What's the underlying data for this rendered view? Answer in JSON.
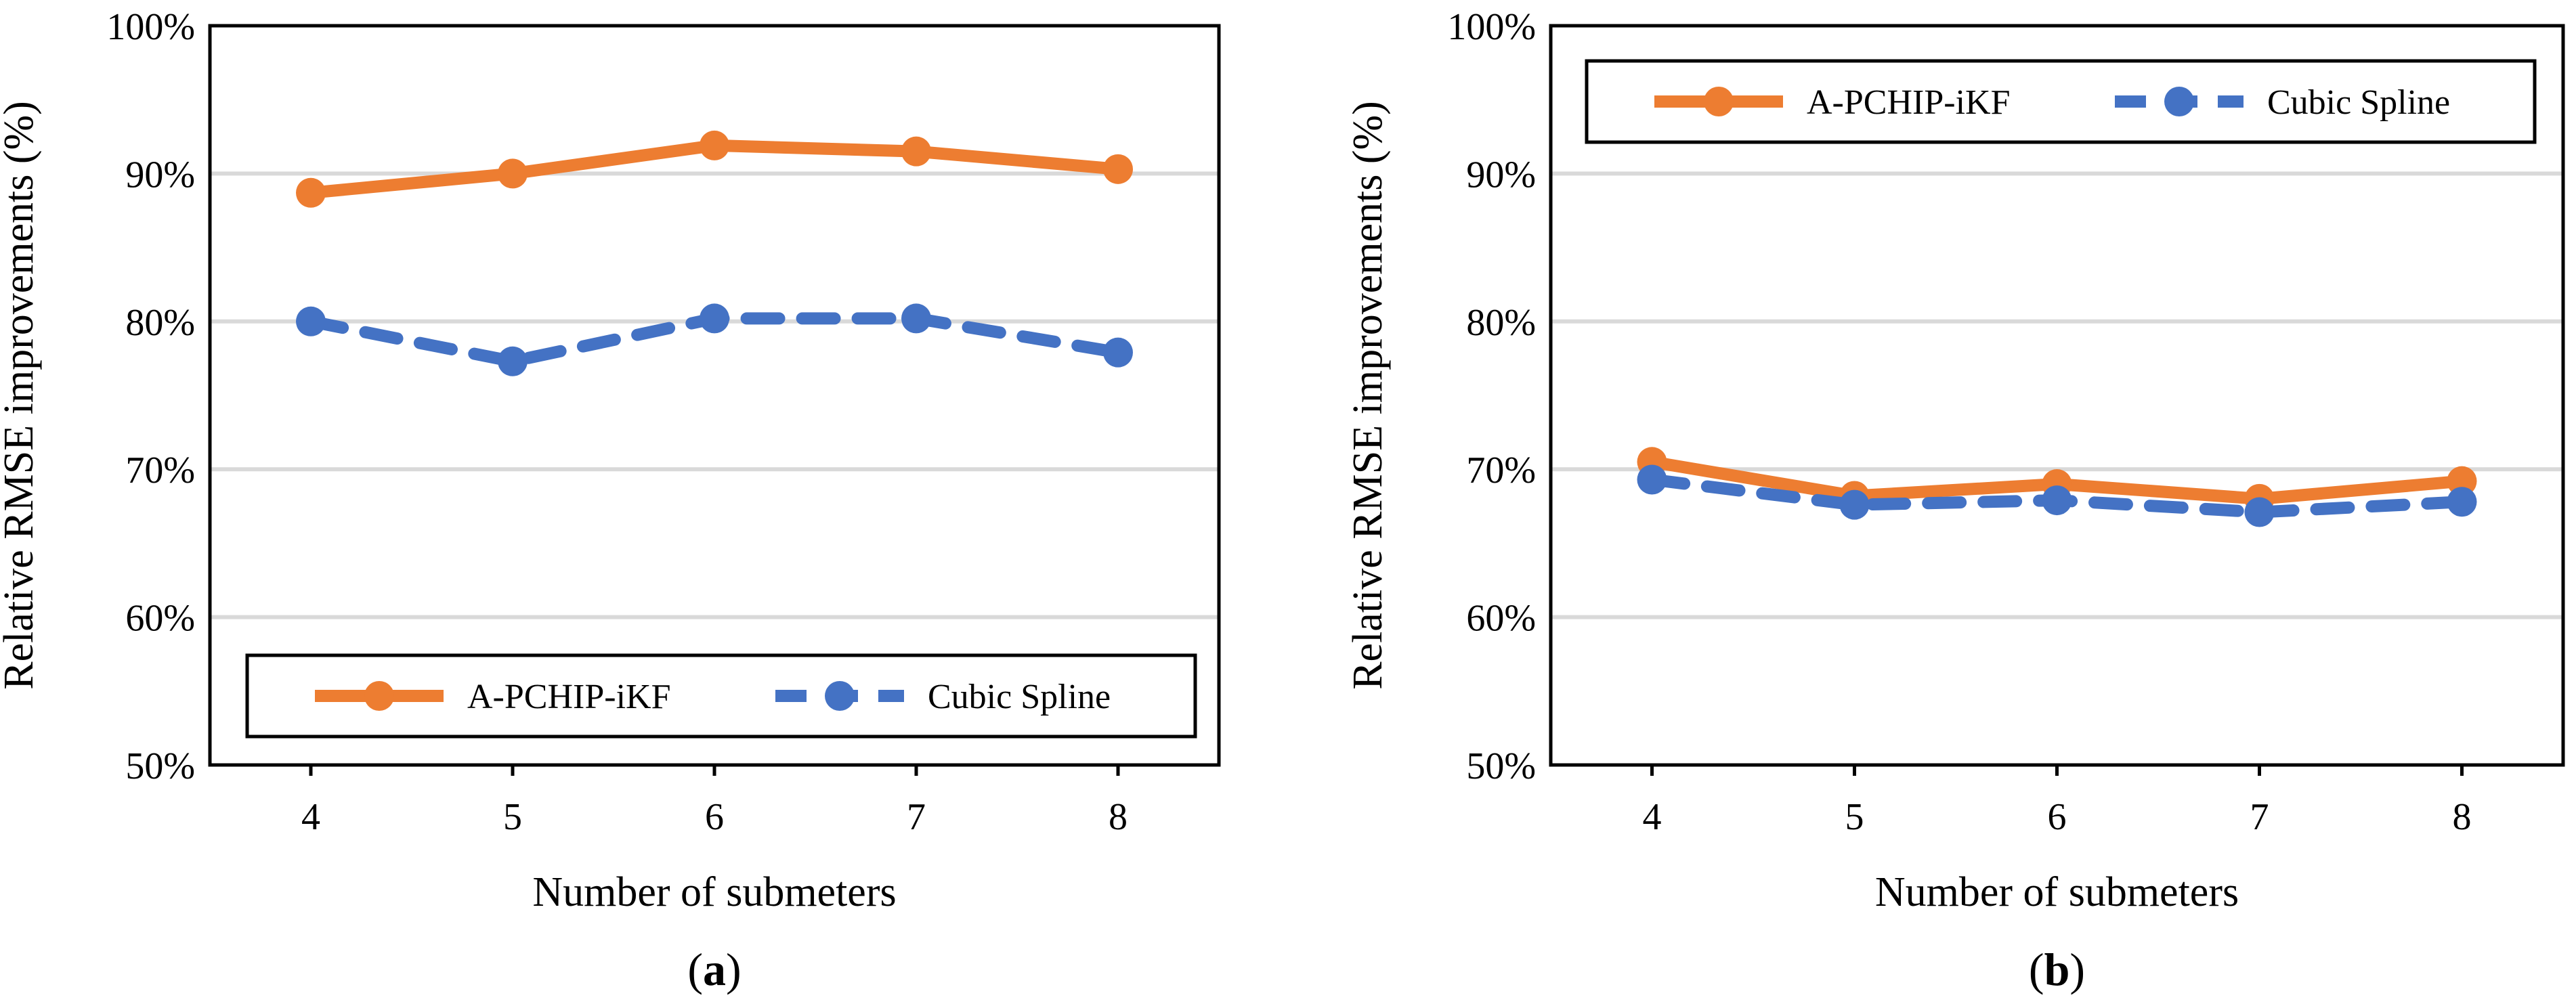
{
  "colors": {
    "apchip": "#ED7D31",
    "spline": "#4472C4"
  },
  "chart_data": [
    {
      "id": "a",
      "type": "line",
      "caption": "a",
      "categories": [
        "4",
        "5",
        "6",
        "7",
        "8"
      ],
      "ylim": [
        50,
        100
      ],
      "yticks": [
        "50%",
        "60%",
        "70%",
        "80%",
        "90%",
        "100%"
      ],
      "xlabel": "Number of submeters",
      "ylabel": "Relative RMSE improvements (%)",
      "legend_position": "bottom",
      "series": [
        {
          "name": "A-PCHIP-iKF",
          "values": [
            88.7,
            90.0,
            91.9,
            91.5,
            90.3
          ]
        },
        {
          "name": "Cubic Spline",
          "values": [
            80.0,
            77.3,
            80.2,
            80.2,
            77.9
          ]
        }
      ]
    },
    {
      "id": "b",
      "type": "line",
      "caption": "b",
      "categories": [
        "4",
        "5",
        "6",
        "7",
        "8"
      ],
      "ylim": [
        50,
        100
      ],
      "yticks": [
        "50%",
        "60%",
        "70%",
        "80%",
        "90%",
        "100%"
      ],
      "xlabel": "Number of submeters",
      "ylabel": "Relative RMSE improvements (%)",
      "legend_position": "top",
      "series": [
        {
          "name": "A-PCHIP-iKF",
          "values": [
            70.5,
            68.2,
            69.0,
            68.0,
            69.2
          ]
        },
        {
          "name": "Cubic Spline",
          "values": [
            69.3,
            67.6,
            67.9,
            67.1,
            67.8
          ]
        }
      ]
    }
  ]
}
